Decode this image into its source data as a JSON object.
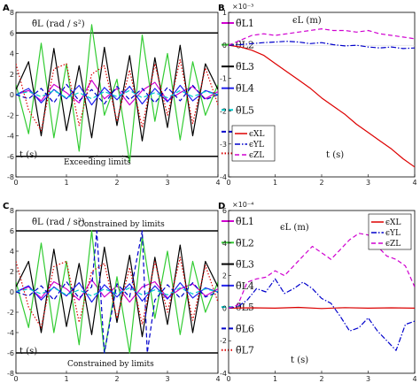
{
  "chart_data": [
    {
      "panel": "A",
      "type": "line",
      "title": "θ̈L (rad / s²)",
      "xlabel": "t (s)",
      "ylabel": "",
      "xlim": [
        0,
        4
      ],
      "ylim": [
        -8,
        8
      ],
      "xticks": [
        "0",
        "1",
        "2",
        "3",
        "4"
      ],
      "yticks": [
        "-8",
        "-6",
        "-4",
        "-2",
        "0",
        "2",
        "4",
        "6",
        "8"
      ],
      "limit_lines": [
        6,
        -6
      ],
      "annotation": "Exceeding limits",
      "legend_position": "right",
      "series": [
        {
          "name": "θ̈L1",
          "color": "#d000d0",
          "style": "solid",
          "x": [
            0,
            0.25,
            0.5,
            0.75,
            1,
            1.25,
            1.5,
            1.75,
            2,
            2.25,
            2.5,
            2.75,
            3,
            3.25,
            3.5,
            3.75,
            4
          ],
          "y": [
            0,
            0.4,
            -0.6,
            1.0,
            0.2,
            -0.8,
            1.4,
            -0.4,
            0.6,
            -1.0,
            0.4,
            1.2,
            -0.6,
            0.2,
            0.8,
            -0.4,
            0.3
          ]
        },
        {
          "name": "θ̈L2",
          "color": "#33cc33",
          "style": "solid",
          "x": [
            0,
            0.25,
            0.5,
            0.75,
            1,
            1.25,
            1.5,
            1.75,
            2,
            2.25,
            2.5,
            2.75,
            3,
            3.25,
            3.5,
            3.75,
            4
          ],
          "y": [
            1.0,
            -3.8,
            5.0,
            -4.2,
            3.0,
            -5.5,
            6.8,
            -2.0,
            1.5,
            -6.6,
            5.8,
            -2.6,
            4.0,
            -4.4,
            3.2,
            -2.0,
            1.0
          ]
        },
        {
          "name": "θ̈L3",
          "color": "#000000",
          "style": "solid",
          "x": [
            0,
            0.25,
            0.5,
            0.75,
            1,
            1.25,
            1.5,
            1.75,
            2,
            2.25,
            2.5,
            2.75,
            3,
            3.25,
            3.5,
            3.75,
            4
          ],
          "y": [
            0.5,
            3.2,
            -4.0,
            4.5,
            -3.5,
            2.8,
            -4.2,
            4.6,
            -3.0,
            3.8,
            -4.5,
            3.6,
            -3.2,
            4.8,
            -4.0,
            3.0,
            0.5
          ]
        },
        {
          "name": "θ̈L4",
          "color": "#2222ee",
          "style": "solid",
          "x": [
            0,
            0.25,
            0.5,
            0.75,
            1,
            1.25,
            1.5,
            1.75,
            2,
            2.25,
            2.5,
            2.75,
            3,
            3.25,
            3.5,
            3.75,
            4
          ],
          "y": [
            0,
            0.6,
            -0.8,
            0.5,
            -0.4,
            0.9,
            -1.0,
            0.7,
            -0.5,
            0.8,
            -0.9,
            0.6,
            -0.7,
            0.9,
            -0.6,
            0.4,
            0
          ]
        },
        {
          "name": "θ̈L5",
          "color": "#00cccc",
          "style": "dashed",
          "x": [
            0,
            0.25,
            0.5,
            0.75,
            1,
            1.25,
            1.5,
            1.75,
            2,
            2.25,
            2.5,
            2.75,
            3,
            3.25,
            3.5,
            3.75,
            4
          ],
          "y": [
            0,
            0.3,
            -0.2,
            0.4,
            -0.3,
            0.2,
            -0.4,
            0.3,
            -0.2,
            0.4,
            -0.3,
            0.2,
            -0.3,
            0.4,
            -0.2,
            0.3,
            0
          ]
        },
        {
          "name": "θ̈L6",
          "color": "#0000cc",
          "style": "dashed",
          "x": [
            0,
            0.25,
            0.5,
            0.75,
            1,
            1.25,
            1.5,
            1.75,
            2,
            2.25,
            2.5,
            2.75,
            3,
            3.25,
            3.5,
            3.75,
            4
          ],
          "y": [
            0,
            -0.4,
            0.6,
            -0.8,
            1.0,
            -0.6,
            0.5,
            -0.9,
            0.8,
            -0.5,
            0.6,
            -0.8,
            0.7,
            -0.6,
            0.9,
            -0.5,
            0
          ]
        },
        {
          "name": "θ̈L7",
          "color": "#dd0000",
          "style": "dotted",
          "x": [
            0,
            0.25,
            0.5,
            0.75,
            1,
            1.25,
            1.5,
            1.75,
            2,
            2.25,
            2.5,
            2.75,
            3,
            3.25,
            3.5,
            3.75,
            4
          ],
          "y": [
            3.0,
            -1.5,
            -3.5,
            2.5,
            3.0,
            -3.0,
            2.0,
            2.8,
            -2.6,
            2.4,
            -3.2,
            3.0,
            -2.0,
            3.4,
            -2.8,
            2.6,
            -1.0
          ]
        }
      ]
    },
    {
      "panel": "B",
      "type": "line",
      "title": "ϵL (m)",
      "xlabel": "t (s)",
      "ylabel": "",
      "exponent": "×10⁻³",
      "xlim": [
        0,
        4
      ],
      "ylim": [
        -4,
        1
      ],
      "xticks": [
        "0",
        "1",
        "2",
        "3",
        "4"
      ],
      "yticks": [
        "-4",
        "-3",
        "-2",
        "-1",
        "0",
        "1"
      ],
      "legend_position": "bottom-left",
      "series": [
        {
          "name": "ϵXL",
          "color": "#dd0000",
          "style": "solid",
          "x": [
            0,
            0.25,
            0.5,
            0.75,
            1,
            1.25,
            1.5,
            1.75,
            2,
            2.25,
            2.5,
            2.75,
            3,
            3.25,
            3.5,
            3.75,
            4
          ],
          "y": [
            0,
            -0.05,
            -0.15,
            -0.3,
            -0.55,
            -0.8,
            -1.05,
            -1.3,
            -1.6,
            -1.85,
            -2.1,
            -2.4,
            -2.65,
            -2.9,
            -3.15,
            -3.45,
            -3.7
          ]
        },
        {
          "name": "ϵYL",
          "color": "#0000cc",
          "style": "dashdot",
          "x": [
            0,
            0.25,
            0.5,
            0.75,
            1,
            1.25,
            1.5,
            1.75,
            2,
            2.25,
            2.5,
            2.75,
            3,
            3.25,
            3.5,
            3.75,
            4
          ],
          "y": [
            0,
            0.02,
            0.05,
            0.08,
            0.1,
            0.12,
            0.1,
            0.05,
            0.08,
            0.02,
            -0.02,
            0.0,
            -0.05,
            -0.08,
            -0.05,
            -0.1,
            -0.08
          ]
        },
        {
          "name": "ϵZL",
          "color": "#d000d0",
          "style": "dashed",
          "x": [
            0,
            0.25,
            0.5,
            0.75,
            1,
            1.25,
            1.5,
            1.75,
            2,
            2.25,
            2.5,
            2.75,
            3,
            3.25,
            3.5,
            3.75,
            4
          ],
          "y": [
            0,
            0.15,
            0.3,
            0.35,
            0.3,
            0.35,
            0.4,
            0.45,
            0.5,
            0.45,
            0.45,
            0.4,
            0.45,
            0.35,
            0.3,
            0.25,
            0.2
          ]
        }
      ]
    },
    {
      "panel": "C",
      "type": "line",
      "title": "θ̈L (rad / s²)",
      "xlabel": "t (s)",
      "ylabel": "",
      "xlim": [
        0,
        4
      ],
      "ylim": [
        -8,
        8
      ],
      "xticks": [
        "0",
        "1",
        "2",
        "3",
        "4"
      ],
      "yticks": [
        "-8",
        "-6",
        "-4",
        "-2",
        "0",
        "2",
        "4",
        "6",
        "8"
      ],
      "limit_lines": [
        6,
        -6
      ],
      "annotations": [
        "Constrained by limits",
        "Constrained by limits"
      ],
      "legend_position": "right",
      "series": [
        {
          "name": "θ̈L1",
          "color": "#d000d0",
          "style": "solid",
          "x": [
            0,
            0.25,
            0.5,
            0.75,
            1,
            1.25,
            1.5,
            1.75,
            2,
            2.25,
            2.5,
            2.75,
            3,
            3.25,
            3.5,
            3.75,
            4
          ],
          "y": [
            0,
            0.5,
            -0.6,
            1.0,
            0.3,
            -0.8,
            1.2,
            -0.5,
            0.6,
            -1.0,
            0.5,
            1.0,
            -0.6,
            0.3,
            0.8,
            -0.4,
            0.3
          ]
        },
        {
          "name": "θ̈L2",
          "color": "#33cc33",
          "style": "solid",
          "x": [
            0,
            0.25,
            0.5,
            0.75,
            1,
            1.25,
            1.5,
            1.75,
            2,
            2.25,
            2.5,
            2.75,
            3,
            3.25,
            3.5,
            3.75,
            4
          ],
          "y": [
            1.0,
            -3.5,
            4.8,
            -4.0,
            3.0,
            -5.2,
            6.0,
            -6.0,
            1.5,
            -6.0,
            5.5,
            -2.6,
            4.0,
            -4.2,
            3.0,
            -2.0,
            1.0
          ]
        },
        {
          "name": "θ̈L3",
          "color": "#000000",
          "style": "solid",
          "x": [
            0,
            0.25,
            0.5,
            0.75,
            1,
            1.25,
            1.5,
            1.75,
            2,
            2.25,
            2.5,
            2.75,
            3,
            3.25,
            3.5,
            3.75,
            4
          ],
          "y": [
            0.5,
            3.0,
            -4.0,
            4.2,
            -3.4,
            2.8,
            -4.2,
            4.4,
            -3.0,
            3.6,
            -4.4,
            3.4,
            -3.2,
            4.6,
            -4.0,
            3.0,
            0.5
          ]
        },
        {
          "name": "θ̈L4",
          "color": "#2222ee",
          "style": "solid",
          "x": [
            0,
            0.25,
            0.5,
            0.75,
            1,
            1.25,
            1.5,
            1.75,
            2,
            2.25,
            2.5,
            2.75,
            3,
            3.25,
            3.5,
            3.75,
            4
          ],
          "y": [
            0,
            0.6,
            -0.8,
            0.5,
            -0.4,
            0.9,
            -1.0,
            0.7,
            -0.5,
            0.8,
            -0.9,
            0.6,
            -0.7,
            0.9,
            -0.6,
            0.4,
            0
          ]
        },
        {
          "name": "θ̈L5",
          "color": "#00cccc",
          "style": "dashed",
          "x": [
            0,
            0.25,
            0.5,
            0.75,
            1,
            1.25,
            1.5,
            1.75,
            2,
            2.25,
            2.5,
            2.75,
            3,
            3.25,
            3.5,
            3.75,
            4
          ],
          "y": [
            0,
            0.3,
            -0.2,
            0.4,
            -0.3,
            0.2,
            -0.4,
            0.3,
            -0.2,
            0.4,
            -0.3,
            0.2,
            -0.3,
            0.4,
            -0.2,
            0.3,
            0
          ]
        },
        {
          "name": "θ̈L6",
          "color": "#0000cc",
          "style": "dashed",
          "x": [
            0,
            0.25,
            0.5,
            0.75,
            1,
            1.25,
            1.5,
            1.6,
            1.75,
            2,
            2.25,
            2.5,
            2.6,
            2.75,
            3,
            3.25,
            3.5,
            3.75,
            4
          ],
          "y": [
            0,
            -0.4,
            0.6,
            -0.8,
            1.0,
            -0.6,
            0.5,
            6.0,
            -6.0,
            0.8,
            -0.5,
            6.0,
            -6.0,
            -0.8,
            0.7,
            -0.6,
            0.9,
            -0.5,
            0
          ]
        },
        {
          "name": "θ̈L7",
          "color": "#dd0000",
          "style": "dotted",
          "x": [
            0,
            0.25,
            0.5,
            0.75,
            1,
            1.25,
            1.5,
            1.75,
            2,
            2.25,
            2.5,
            2.75,
            3,
            3.25,
            3.5,
            3.75,
            4
          ],
          "y": [
            3.0,
            -1.5,
            -3.5,
            2.5,
            3.0,
            -3.0,
            2.0,
            2.8,
            -2.6,
            2.4,
            -3.2,
            3.0,
            -2.0,
            3.4,
            -2.8,
            2.6,
            -1.0
          ]
        }
      ]
    },
    {
      "panel": "D",
      "type": "line",
      "title": "ϵL (m)",
      "xlabel": "t (s)",
      "ylabel": "",
      "exponent": "×10⁻⁴",
      "xlim": [
        0,
        4
      ],
      "ylim": [
        -4,
        6
      ],
      "xticks": [
        "0",
        "1",
        "2",
        "3",
        "4"
      ],
      "yticks": [
        "-4",
        "-2",
        "0",
        "2",
        "4",
        "6"
      ],
      "legend_position": "top-right",
      "series": [
        {
          "name": "ϵXL",
          "color": "#dd0000",
          "style": "solid",
          "x": [
            0,
            0.5,
            1,
            1.5,
            2,
            2.5,
            3,
            3.5,
            4
          ],
          "y": [
            0,
            0.02,
            0.0,
            0.05,
            -0.02,
            0.03,
            0.0,
            0.02,
            0.0
          ]
        },
        {
          "name": "ϵYL",
          "color": "#0000cc",
          "style": "dashdot",
          "x": [
            0,
            0.2,
            0.4,
            0.6,
            0.8,
            1.0,
            1.2,
            1.4,
            1.6,
            1.8,
            2.0,
            2.2,
            2.4,
            2.6,
            2.8,
            3.0,
            3.2,
            3.4,
            3.6,
            3.8,
            4.0
          ],
          "y": [
            0,
            0.1,
            0.5,
            1.2,
            1.0,
            1.8,
            0.9,
            1.2,
            1.6,
            1.2,
            0.6,
            0.3,
            -0.5,
            -1.4,
            -1.2,
            -0.6,
            -1.4,
            -2.0,
            -2.6,
            -1.0,
            -0.8
          ]
        },
        {
          "name": "ϵZL",
          "color": "#d000d0",
          "style": "dashed",
          "x": [
            0,
            0.2,
            0.4,
            0.6,
            0.8,
            1.0,
            1.2,
            1.4,
            1.6,
            1.8,
            2.0,
            2.2,
            2.4,
            2.6,
            2.8,
            3.0,
            3.2,
            3.4,
            3.6,
            3.8,
            4.0
          ],
          "y": [
            0,
            0.2,
            1.6,
            1.8,
            1.9,
            2.3,
            2.0,
            2.6,
            3.2,
            3.8,
            3.4,
            3.0,
            3.6,
            4.2,
            4.6,
            4.5,
            3.8,
            3.2,
            3.0,
            2.6,
            1.3
          ]
        }
      ]
    }
  ]
}
